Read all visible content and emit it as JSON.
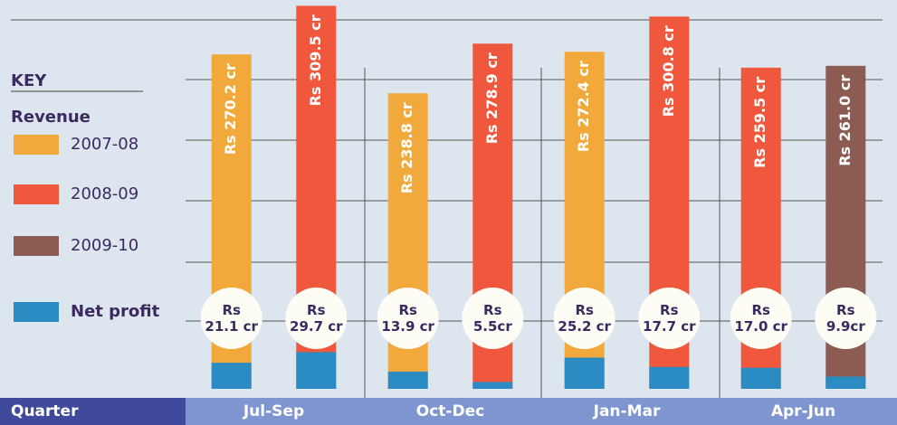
{
  "chart_data": {
    "type": "bar",
    "legend_title": "KEY",
    "revenue_label": "Revenue",
    "net_profit_label": "Net profit",
    "net_profit_color": "#2b8cc4",
    "x_label": "Quarter",
    "categories": [
      "Jul-Sep",
      "Oct-Dec",
      "Jan-Mar",
      "Apr-Jun"
    ],
    "series": [
      {
        "name": "2007-08",
        "color": "#f2a93b",
        "values": [
          270.2,
          238.8,
          272.4,
          null
        ],
        "value_labels": [
          "Rs 270.2 cr",
          "Rs 238.8 cr",
          "Rs 272.4 cr",
          null
        ],
        "net_profit": [
          21.1,
          13.9,
          25.2,
          null
        ],
        "net_profit_labels": [
          "Rs 21.1 cr",
          "Rs 13.9 cr",
          "Rs 25.2 cr",
          null
        ]
      },
      {
        "name": "2008-09",
        "color": "#f0583d",
        "values": [
          309.5,
          278.9,
          300.8,
          259.5
        ],
        "value_labels": [
          "Rs 309.5 cr",
          "Rs 278.9 cr",
          "Rs 300.8 cr",
          "Rs 259.5 cr"
        ],
        "net_profit": [
          29.7,
          5.5,
          17.7,
          17.0
        ],
        "net_profit_labels": [
          "Rs 29.7 cr",
          "Rs 5.5cr",
          "Rs 17.7 cr",
          "Rs 17.0 cr"
        ]
      },
      {
        "name": "2009-10",
        "color": "#8c5b52",
        "values": [
          null,
          null,
          null,
          261.0
        ],
        "value_labels": [
          null,
          null,
          null,
          "Rs 261.0 cr"
        ],
        "net_profit": [
          null,
          null,
          null,
          9.9
        ],
        "net_profit_labels": [
          null,
          null,
          null,
          "Rs 9.9cr"
        ]
      }
    ],
    "ylim": [
      0,
      312
    ]
  }
}
